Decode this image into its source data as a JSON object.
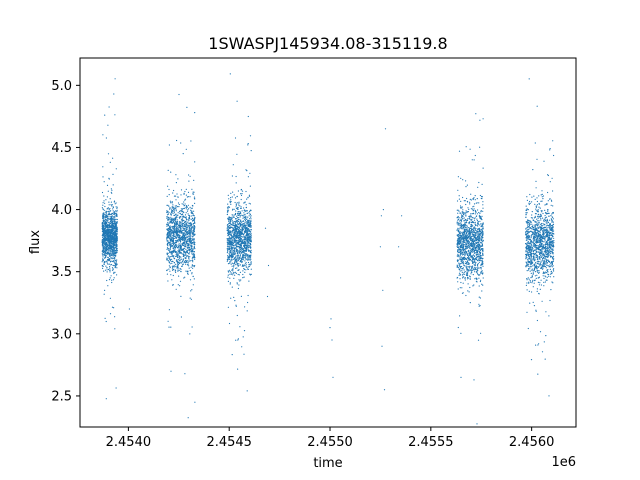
{
  "chart_data": {
    "type": "scatter",
    "title": "1SWASPJ145934.08-315119.8",
    "xlabel": "time",
    "ylabel": "flux",
    "x_offset_label": "1e6",
    "xlim": [
      2453760,
      2456220
    ],
    "ylim": [
      2.25,
      5.22
    ],
    "grid": false,
    "marker_color": "#1f77b4",
    "x_ticks": [
      2454000,
      2454500,
      2455000,
      2455500,
      2456000
    ],
    "x_tick_labels": [
      "2.4540",
      "2.4545",
      "2.4550",
      "2.4555",
      "2.4560"
    ],
    "y_ticks": [
      2.5,
      3.0,
      3.5,
      4.0,
      4.5,
      5.0
    ],
    "y_tick_labels": [
      "2.5",
      "3.0",
      "3.5",
      "4.0",
      "4.5",
      "5.0"
    ],
    "clusters": [
      {
        "x_range": [
          2453870,
          2453945
        ],
        "y_median": 3.78,
        "y_spread": 0.2
      },
      {
        "x_range": [
          2454190,
          2454330
        ],
        "y_median": 3.78,
        "y_spread": 0.25
      },
      {
        "x_range": [
          2454490,
          2454610
        ],
        "y_median": 3.76,
        "y_spread": 0.24
      },
      {
        "x_range": [
          2455630,
          2455760
        ],
        "y_median": 3.73,
        "y_spread": 0.26
      },
      {
        "x_range": [
          2455970,
          2456110
        ],
        "y_median": 3.72,
        "y_spread": 0.26
      }
    ],
    "sparse_points": [
      [
        2455000,
        3.05
      ],
      [
        2455005,
        3.12
      ],
      [
        2455010,
        2.95
      ],
      [
        2455015,
        2.65
      ],
      [
        2455250,
        3.7
      ],
      [
        2455255,
        3.95
      ],
      [
        2455258,
        2.9
      ],
      [
        2455262,
        3.35
      ],
      [
        2455265,
        4.0
      ],
      [
        2455270,
        2.55
      ],
      [
        2455275,
        4.65
      ],
      [
        2455340,
        3.7
      ],
      [
        2455350,
        3.45
      ],
      [
        2455355,
        3.95
      ],
      [
        2454680,
        3.85
      ],
      [
        2454690,
        3.3
      ],
      [
        2454695,
        3.55
      ],
      [
        2454330,
        2.45
      ],
      [
        2454005,
        3.2
      ]
    ]
  }
}
